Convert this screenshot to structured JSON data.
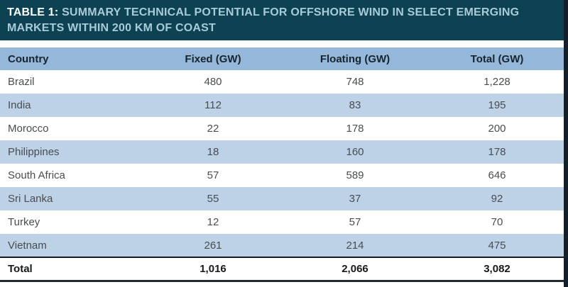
{
  "table": {
    "title_prefix": "TABLE 1:",
    "title": "SUMMARY TECHNICAL POTENTIAL FOR OFFSHORE WIND IN SELECT EMERGING MARKETS WITHIN 200 KM OF COAST",
    "columns": {
      "country": "Country",
      "fixed": "Fixed (GW)",
      "floating": "Floating (GW)",
      "total": "Total (GW)"
    },
    "rows": [
      {
        "country": "Brazil",
        "fixed": "480",
        "floating": "748",
        "total": "1,228"
      },
      {
        "country": "India",
        "fixed": "112",
        "floating": "83",
        "total": "195"
      },
      {
        "country": "Morocco",
        "fixed": "22",
        "floating": "178",
        "total": "200"
      },
      {
        "country": "Philippines",
        "fixed": "18",
        "floating": "160",
        "total": "178"
      },
      {
        "country": "South Africa",
        "fixed": "57",
        "floating": "589",
        "total": "646"
      },
      {
        "country": "Sri Lanka",
        "fixed": "55",
        "floating": "37",
        "total": "92"
      },
      {
        "country": "Turkey",
        "fixed": "12",
        "floating": "57",
        "total": "70"
      },
      {
        "country": "Vietnam",
        "fixed": "261",
        "floating": "214",
        "total": "475"
      }
    ],
    "total_row": {
      "country": "Total",
      "fixed": "1,016",
      "floating": "2,066",
      "total": "3,082"
    }
  },
  "chart_data": {
    "type": "table",
    "title": "TABLE 1: SUMMARY TECHNICAL POTENTIAL FOR OFFSHORE WIND IN SELECT EMERGING MARKETS WITHIN 200 KM OF COAST",
    "columns": [
      "Country",
      "Fixed (GW)",
      "Floating (GW)",
      "Total (GW)"
    ],
    "rows": [
      [
        "Brazil",
        480,
        748,
        1228
      ],
      [
        "India",
        112,
        83,
        195
      ],
      [
        "Morocco",
        22,
        178,
        200
      ],
      [
        "Philippines",
        18,
        160,
        178
      ],
      [
        "South Africa",
        57,
        589,
        646
      ],
      [
        "Sri Lanka",
        55,
        37,
        92
      ],
      [
        "Turkey",
        12,
        57,
        70
      ],
      [
        "Vietnam",
        261,
        214,
        475
      ],
      [
        "Total",
        1016,
        2066,
        3082
      ]
    ],
    "units": "GW",
    "layout": "striped rows, numeric columns centered, bold total row"
  },
  "colors": {
    "title_bg": "#0d4252",
    "title_prefix_text": "#ffffff",
    "title_caption_text": "#a9cbd9",
    "header_row_bg": "#95b7da",
    "alt_row_bg": "#bdd1e7",
    "row_text": "#494d50",
    "total_rule": "#15191c",
    "edge_shadow": "#13202a"
  }
}
